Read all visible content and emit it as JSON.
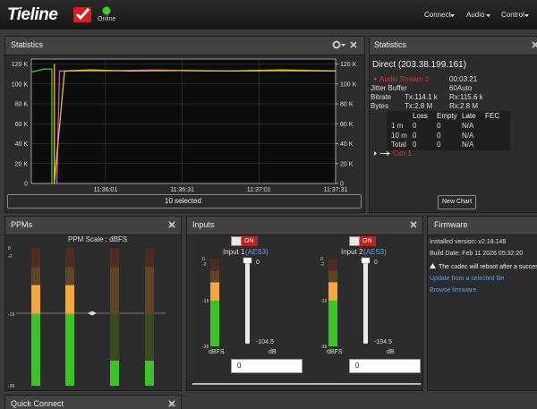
{
  "navbar": {
    "brand": "Tieline",
    "status": "Online",
    "menus": [
      "Connect",
      "Audio",
      "Control"
    ]
  },
  "statistics_panel": {
    "title": "Statistics",
    "button": "10 selected",
    "chart": {
      "type": "line",
      "xlim": [
        41732,
        41851
      ],
      "xticks": [
        {
          "value": 41761,
          "label": "11:36:01"
        },
        {
          "value": 41791,
          "label": "11:36:31"
        },
        {
          "value": 41821,
          "label": "11:37:01"
        },
        {
          "value": 41851,
          "label": "11:37:31"
        }
      ],
      "ylim": [
        0,
        125000
      ],
      "yticks": [
        0,
        {
          "value": 20000,
          "label": "20 K"
        },
        {
          "value": 40000,
          "label": "40 K"
        },
        {
          "value": 60000,
          "label": "60 K"
        },
        {
          "value": 80000,
          "label": "80 K"
        },
        {
          "value": 100000,
          "label": "100 K"
        },
        {
          "value": 120000,
          "label": "120 K"
        }
      ],
      "y2lim": [
        0,
        125000
      ],
      "y2ticks": [
        0,
        {
          "value": 20000,
          "label": "20 K"
        },
        {
          "value": 40000,
          "label": "40 K"
        },
        {
          "value": 60000,
          "label": "60 K"
        },
        {
          "value": 80000,
          "label": "80 K"
        },
        {
          "value": 100000,
          "label": "100 K"
        },
        {
          "value": 120000,
          "label": "120 K"
        }
      ],
      "grid": true,
      "series": [
        {
          "color": "#3ad03a",
          "x": [
            41732,
            41734,
            41737,
            41740,
            41740
          ],
          "values": [
            112000,
            113000,
            115000,
            115000,
            0
          ]
        },
        {
          "color": "#c050e0",
          "x": [
            41742,
            41743,
            41760,
            41780,
            41800,
            41820,
            41851
          ],
          "values": [
            0,
            113000,
            113000,
            114000,
            113000,
            113000,
            113000
          ]
        },
        {
          "color": "#e8c020",
          "x": [
            41741,
            41741,
            41745,
            41755,
            41770,
            41790,
            41810,
            41830,
            41851
          ],
          "values": [
            120000,
            0,
            113000,
            114000,
            113000,
            113500,
            113000,
            114000,
            113000
          ]
        }
      ]
    }
  },
  "details_panel": {
    "title": "Statistics",
    "connection": "Direct (203.38.199.161)",
    "stream": "Audio Stream 1",
    "duration": "00:03:21",
    "jitter": {
      "label": "Jitter Buffer",
      "value": "60Auto"
    },
    "rows": [
      [
        "Bitrate",
        "Tx:114.1 k",
        "Rx:115.6 k"
      ],
      [
        "Bytes",
        "Tx:2.8 M",
        "Rx:2.8 M"
      ]
    ],
    "table": {
      "columns": [
        "Loss",
        "Empty",
        "Late",
        "FEC"
      ],
      "rows": [
        [
          "1 m",
          "0",
          "0",
          "N/A"
        ],
        [
          "10 m",
          "0",
          "0",
          "N/A"
        ],
        [
          "Total",
          "0",
          "0",
          "N/A"
        ]
      ]
    },
    "cxn": "Cxn 1",
    "button": "New Chart"
  },
  "ppms_panel": {
    "title": "PPMs",
    "scale_title": "PPM Scale : dBFS",
    "scale_ticks": [
      0,
      -2,
      -18,
      -38
    ],
    "levels": [
      -10,
      -10,
      -31,
      -31
    ]
  },
  "inputs_panel": {
    "title": "Inputs",
    "inputs": [
      {
        "name": "Input 1",
        "source": "(AES3)",
        "toggle": "ON",
        "fader_max": "0",
        "fader_min": "-104.5",
        "meter_unit": "dBFS",
        "fader_unit": "dB",
        "gain": "0",
        "level": -10
      },
      {
        "name": "Input 2",
        "source": "(AES3)",
        "toggle": "ON",
        "fader_max": "0",
        "fader_min": "-104.5",
        "meter_unit": "dBFS",
        "fader_unit": "dB",
        "gain": "0",
        "level": -10
      }
    ]
  },
  "firmware_panel": {
    "title": "Firmware",
    "version": "Installed version: v2.18.148",
    "build": "Build Date: Feb 11 2026 05:32:20",
    "warning": "The codec will reboot after a succes",
    "links": [
      "Update from a selected file",
      "Browse firmware"
    ]
  },
  "quick_connect": {
    "title": "Quick Connect"
  }
}
